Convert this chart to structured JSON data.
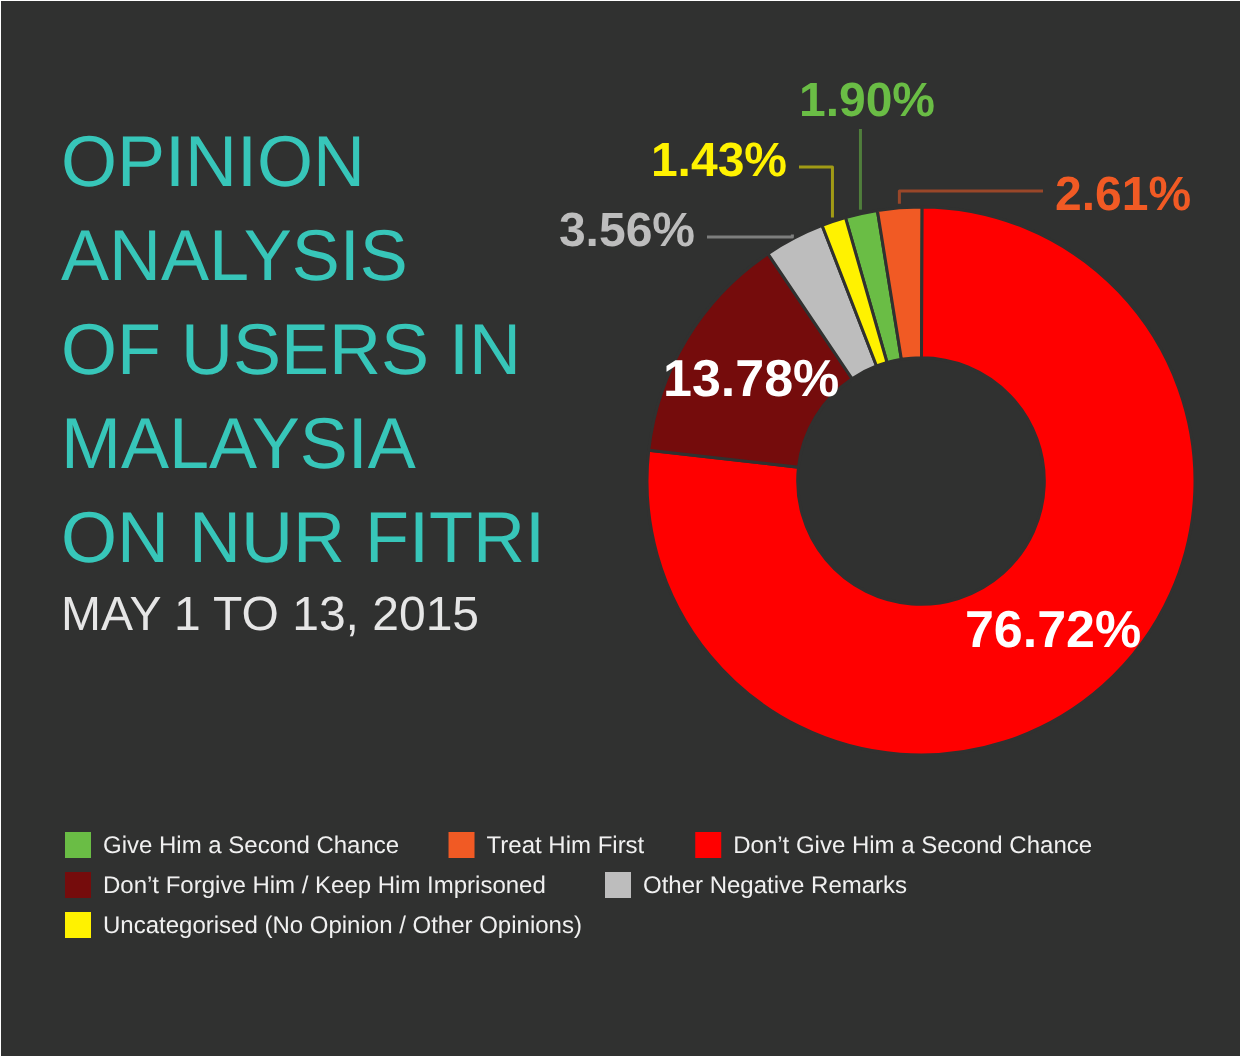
{
  "chart_data": {
    "type": "donut",
    "title": "OPINION ANALYSIS OF USERS IN MALAYSIA ON NUR FITRI",
    "subtitle": "MAY 1 TO 13, 2015",
    "categories": [
      "Give Him a Second Chance",
      "Treat Him First",
      "Don’t Give Him a Second Chance",
      "Don’t Forgive Him / Keep Him Imprisoned",
      "Other Negative Remarks",
      "Uncategorised (No Opinion / Other Opinions)"
    ],
    "values": [
      1.9,
      2.61,
      76.72,
      13.78,
      3.56,
      1.43
    ],
    "colors": [
      "#6abd45",
      "#f15a24",
      "#ff0000",
      "#750c0c",
      "#bdbdbd",
      "#fff200"
    ],
    "value_labels": [
      "1.90%",
      "2.61%",
      "76.72%",
      "13.78%",
      "3.56%",
      "1.43%"
    ],
    "legend": "bottom"
  }
}
